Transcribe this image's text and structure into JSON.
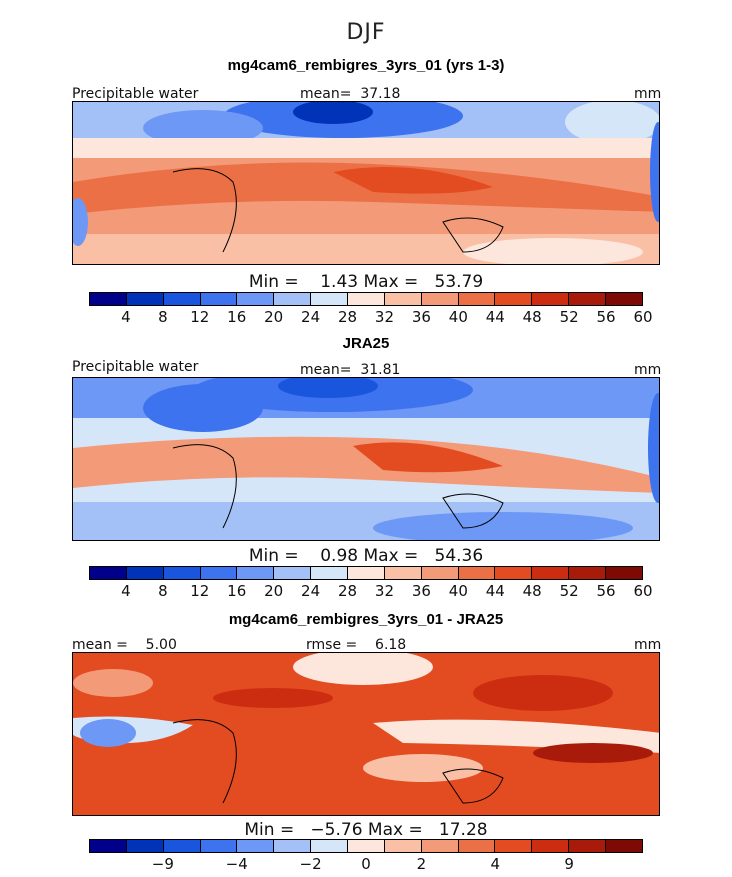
{
  "season": "DJF",
  "panels": [
    {
      "title": "mg4cam6_rembigres_3yrs_01 (yrs 1-3)",
      "left_label": "Precipitable water",
      "center_label": "mean=  37.18",
      "right_label": "mm",
      "minmax": "Min =    1.43 Max =   53.79"
    },
    {
      "title": "JRA25",
      "left_label": "Precipitable water",
      "center_label": "mean=  31.81",
      "right_label": "mm",
      "minmax": "Min =    0.98 Max =   54.36"
    },
    {
      "title": "mg4cam6_rembigres_3yrs_01 - JRA25",
      "left_label": "mean =    5.00",
      "center_label": "rmse =    6.18",
      "right_label": "mm",
      "minmax": "Min =   −5.76 Max =   17.28"
    }
  ],
  "colorbar": {
    "colors": [
      "#00008b",
      "#0033b8",
      "#1a55dd",
      "#3e73f0",
      "#6d98f5",
      "#a3c0f7",
      "#d6e6f9",
      "#fde6dc",
      "#f9c0a6",
      "#f39a78",
      "#ec7046",
      "#e34b21",
      "#cc2d10",
      "#a81a0a",
      "#7d0a05"
    ],
    "labels_abs": [
      "4",
      "8",
      "12",
      "16",
      "20",
      "24",
      "28",
      "32",
      "36",
      "40",
      "44",
      "48",
      "52",
      "56",
      "60"
    ],
    "labels_diff": [
      "−9",
      "−4",
      "−2",
      "0",
      "2",
      "4",
      "9"
    ]
  }
}
